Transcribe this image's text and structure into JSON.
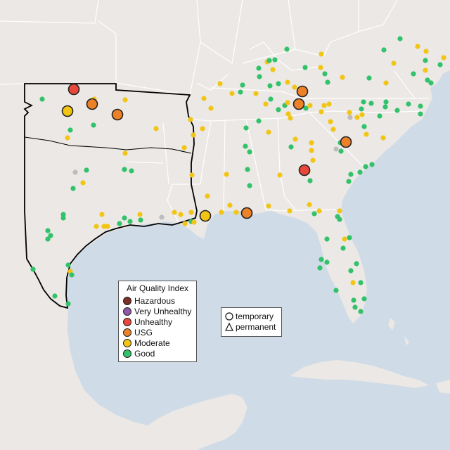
{
  "legend": {
    "title": "Air Quality Index",
    "categories": [
      {
        "label": "Hazardous",
        "color": "#7e2f25"
      },
      {
        "label": "Very Unhealthy",
        "color": "#8e59a8"
      },
      {
        "label": "Unhealthy",
        "color": "#e8473b"
      },
      {
        "label": "USG",
        "color": "#ec8127"
      },
      {
        "label": "Moderate",
        "color": "#f2c515"
      },
      {
        "label": "Good",
        "color": "#31c26a"
      }
    ]
  },
  "shape_legend": {
    "temporary": "temporary",
    "permanent": "permanent"
  },
  "colors": {
    "water": "#cfdbe6",
    "land": "#ebe8e5",
    "no_data": "#bdbdbd",
    "border": "#ffffff",
    "region_outline": "#000000"
  }
}
